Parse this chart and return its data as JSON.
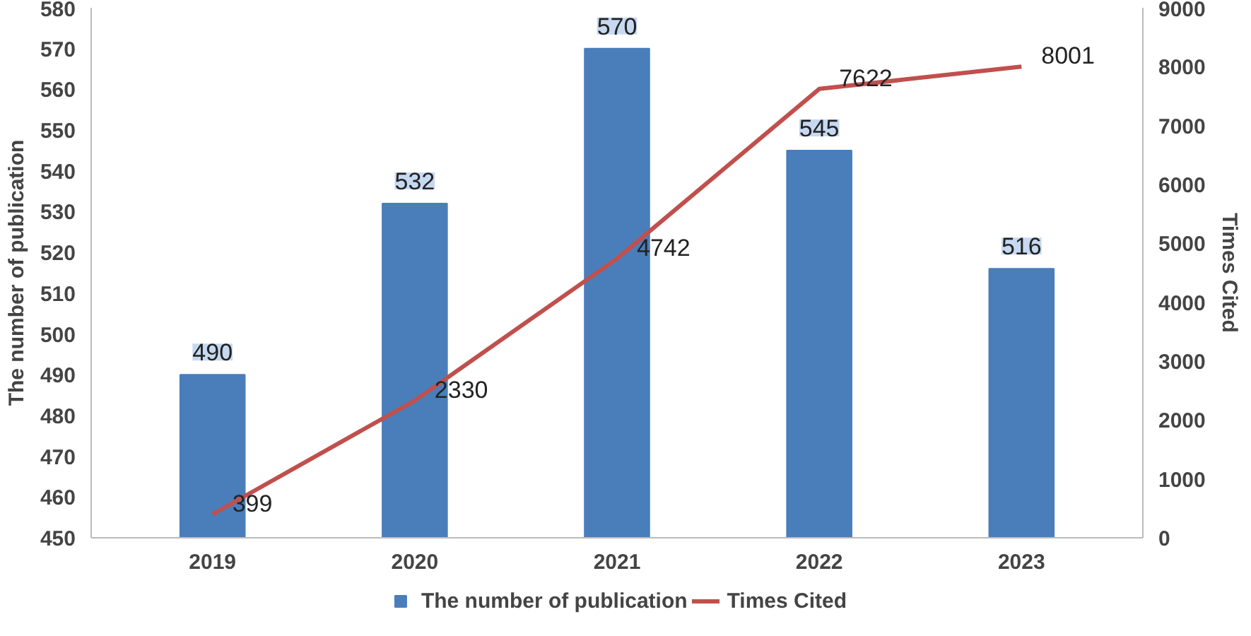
{
  "chart_data": {
    "type": "bar",
    "categories": [
      "2019",
      "2020",
      "2021",
      "2022",
      "2023"
    ],
    "series": [
      {
        "name": "The number of publication",
        "color": "#4a7ebb",
        "values": [
          490,
          532,
          570,
          545,
          516
        ]
      },
      {
        "name": "Times Cited",
        "type": "line",
        "axis": "y2",
        "color": "#c0504d",
        "values": [
          399,
          2330,
          4742,
          7622,
          8001
        ]
      }
    ],
    "ylabel": "The number of publication",
    "y2label": "Times Cited",
    "ylim": [
      450,
      580
    ],
    "yticks": [
      450,
      460,
      470,
      480,
      490,
      500,
      510,
      520,
      530,
      540,
      550,
      560,
      570,
      580
    ],
    "y2lim": [
      0,
      9000
    ],
    "y2ticks": [
      0,
      1000,
      2000,
      3000,
      4000,
      5000,
      6000,
      7000,
      8000,
      9000
    ],
    "data_labels": true,
    "legend": "bottom",
    "grid": false,
    "marker": "none",
    "line_style": "solid"
  }
}
